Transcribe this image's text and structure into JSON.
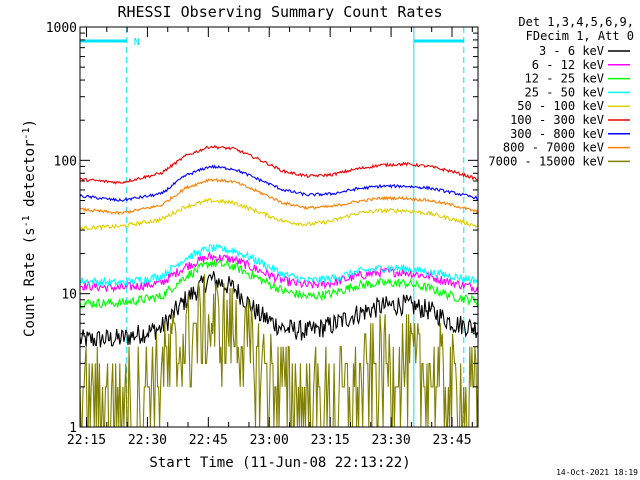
{
  "chart_data": {
    "type": "line",
    "title": "RHESSI Observing Summary Count Rates",
    "xlabel": "Start Time (11-Jun-08 22:13:22)",
    "ylabel_main": "Count Rate (s",
    "ylabel_sup1": "-1",
    "ylabel_mid": " detector",
    "ylabel_sup2": "-1",
    "ylabel_end": ")",
    "yscale": "log",
    "ylim": [
      1,
      1000
    ],
    "xlim_minutes": [
      0,
      98
    ],
    "x_tick_labels": [
      "22:15",
      "22:30",
      "22:45",
      "23:00",
      "23:15",
      "23:30",
      "23:45"
    ],
    "x_tick_minutes": [
      1.6,
      16.6,
      31.6,
      46.6,
      61.6,
      76.6,
      91.6
    ],
    "y_tick_labels": [
      "1",
      "10",
      "100",
      "1000"
    ],
    "y_tick_values": [
      1,
      10,
      100,
      1000
    ],
    "legend_header": [
      "Det 1,3,4,5,6,9,",
      "FDecim 1, Att 0"
    ],
    "legend_position": "top-right",
    "night_marker_label": "N",
    "timestamp": "14-Oct-2021 18:19",
    "shading_intervals_minutes": [
      [
        0,
        11.5
      ],
      [
        82.2,
        94.5
      ]
    ],
    "series": [
      {
        "name": "3 - 6 keV",
        "color": "#000000",
        "baseline": 5.0,
        "peak": 13,
        "noise": 0.18,
        "x": [
          0,
          10,
          20,
          26,
          32,
          38,
          44,
          50,
          56,
          62,
          68,
          74,
          80,
          86,
          92,
          98
        ],
        "values": [
          4.5,
          4.6,
          5.5,
          9,
          13,
          11,
          7,
          5.5,
          5.2,
          5.8,
          7,
          8,
          8.3,
          7.5,
          6,
          5.5
        ]
      },
      {
        "name": "6 - 12 keV",
        "color": "#ff00ff",
        "baseline": 11,
        "peak": 19,
        "noise": 0.08,
        "x": [
          0,
          10,
          20,
          26,
          32,
          38,
          44,
          50,
          56,
          62,
          68,
          74,
          80,
          86,
          92,
          98
        ],
        "values": [
          11.5,
          11,
          12,
          16,
          19,
          18,
          15,
          12.5,
          11.5,
          12,
          13.5,
          14.5,
          14.5,
          13.5,
          12,
          11
        ]
      },
      {
        "name": "12 - 25 keV",
        "color": "#00ff00",
        "baseline": 9,
        "peak": 17,
        "noise": 0.08,
        "x": [
          0,
          10,
          20,
          26,
          32,
          38,
          44,
          50,
          56,
          62,
          68,
          74,
          80,
          86,
          92,
          98
        ],
        "values": [
          8.5,
          8.5,
          9.5,
          13.5,
          17,
          16,
          13,
          10.5,
          9.5,
          10,
          11.5,
          12,
          12,
          11,
          9.5,
          8.8
        ]
      },
      {
        "name": "25 - 50 keV",
        "color": "#00ffff",
        "baseline": 12,
        "peak": 22,
        "noise": 0.07,
        "x": [
          0,
          10,
          20,
          26,
          32,
          38,
          44,
          50,
          56,
          62,
          68,
          74,
          80,
          86,
          92,
          98
        ],
        "values": [
          12.5,
          12,
          13.5,
          18.5,
          22,
          21,
          17.5,
          14,
          12.5,
          13,
          14.5,
          15.5,
          15.5,
          14.5,
          13.5,
          12.5
        ]
      },
      {
        "name": "50 - 100 keV",
        "color": "#e0d000",
        "baseline": 33,
        "peak": 50,
        "noise": 0.035,
        "x": [
          0,
          10,
          20,
          26,
          32,
          38,
          44,
          50,
          56,
          62,
          68,
          74,
          80,
          86,
          92,
          98
        ],
        "values": [
          31,
          32,
          36,
          45,
          50,
          48,
          41,
          35,
          33,
          35,
          40,
          42,
          42,
          40,
          36,
          32
        ]
      },
      {
        "name": "100 - 300 keV",
        "color": "#ee0000",
        "baseline": 70,
        "peak": 125,
        "noise": 0.025,
        "x": [
          0,
          10,
          20,
          26,
          32,
          38,
          44,
          50,
          56,
          62,
          68,
          74,
          80,
          86,
          92,
          98
        ],
        "values": [
          72,
          68,
          80,
          108,
          127,
          122,
          102,
          83,
          76,
          78,
          86,
          92,
          94,
          90,
          82,
          72
        ]
      },
      {
        "name": "300 - 800 keV",
        "color": "#0000ff",
        "baseline": 50,
        "peak": 88,
        "noise": 0.025,
        "x": [
          0,
          10,
          20,
          26,
          32,
          38,
          44,
          50,
          56,
          62,
          68,
          74,
          80,
          86,
          92,
          98
        ],
        "values": [
          54,
          50,
          56,
          77,
          90,
          86,
          72,
          60,
          55,
          56,
          61,
          64,
          64,
          62,
          57,
          52
        ]
      },
      {
        "name": "800 - 7000 keV",
        "color": "#ff8000",
        "baseline": 42,
        "peak": 72,
        "noise": 0.025,
        "x": [
          0,
          10,
          20,
          26,
          32,
          38,
          44,
          50,
          56,
          62,
          68,
          74,
          80,
          86,
          92,
          98
        ],
        "values": [
          43,
          40,
          46,
          62,
          72,
          69,
          58,
          48,
          44,
          45,
          49,
          52,
          52,
          50,
          46,
          41
        ]
      },
      {
        "name": "7000 - 15000 keV",
        "color": "#808000",
        "baseline": 1.5,
        "peak": 6,
        "noise": 0.3,
        "x": [
          0,
          10,
          20,
          26,
          32,
          38,
          44,
          50,
          56,
          62,
          68,
          74,
          80,
          86,
          92,
          98
        ],
        "values": [
          1.6,
          1.5,
          2.5,
          4.5,
          6,
          5,
          3,
          2,
          1.6,
          1.6,
          2,
          2.8,
          3,
          2.5,
          2,
          1.5
        ]
      }
    ]
  }
}
